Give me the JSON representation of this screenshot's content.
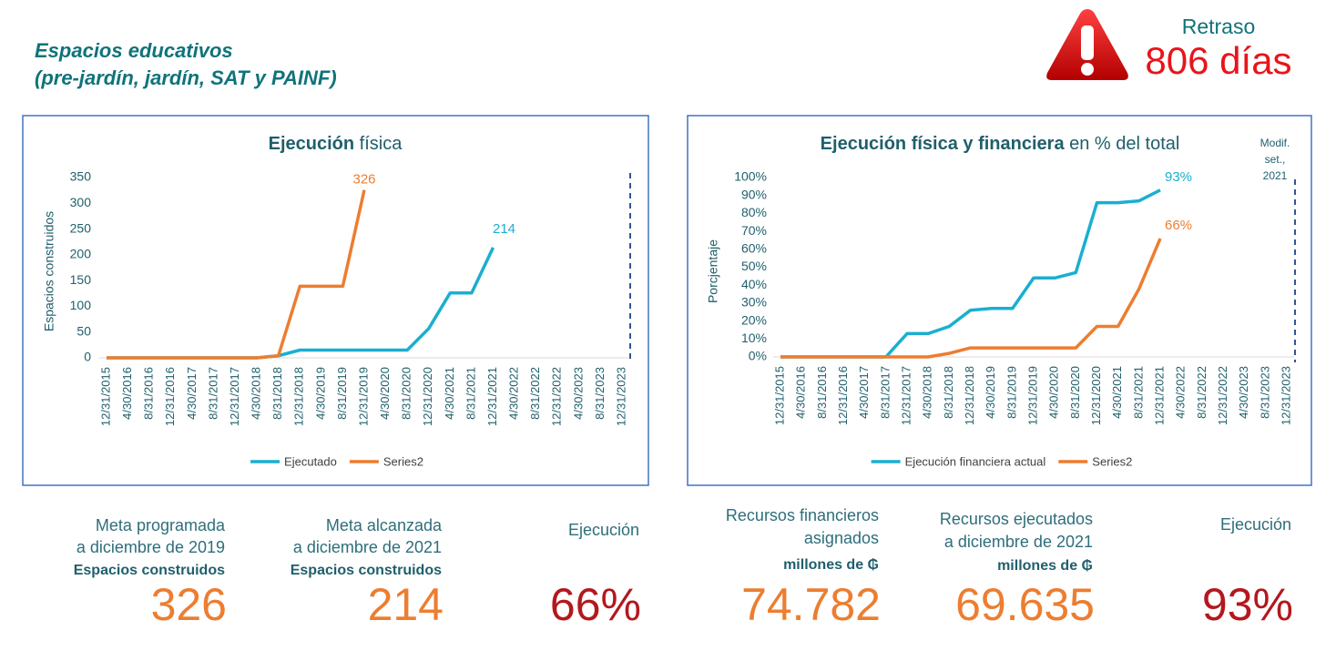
{
  "header": {
    "title": [
      "Espacios educativos",
      "(pre-jardín, jardín, SAT y PAINF)"
    ]
  },
  "delay": {
    "label": "Retraso",
    "value": "806 días"
  },
  "chart_data": [
    {
      "type": "line",
      "title": [
        "Ejecución",
        "física"
      ],
      "ylabel": "Espacios construidos",
      "categories": [
        "12/31/2015",
        "4/30/2016",
        "8/31/2016",
        "12/31/2016",
        "4/30/2017",
        "8/31/2017",
        "12/31/2017",
        "4/30/2018",
        "8/31/2018",
        "12/31/2018",
        "4/30/2019",
        "8/31/2019",
        "12/31/2019",
        "4/30/2020",
        "8/31/2020",
        "12/31/2020",
        "4/30/2021",
        "8/31/2021",
        "12/31/2021",
        "4/30/2022",
        "8/31/2022",
        "12/31/2022",
        "4/30/2023",
        "8/31/2023",
        "12/31/2023"
      ],
      "series": [
        {
          "name": "Ejecutado",
          "color": "#1aafd0",
          "values": [
            0,
            0,
            0,
            0,
            0,
            0,
            0,
            0,
            4,
            15,
            15,
            15,
            15,
            15,
            15,
            57,
            126,
            126,
            214,
            null,
            null,
            null,
            null,
            null,
            null
          ]
        },
        {
          "name": "Series2",
          "color": "#ed7d31",
          "values": [
            0,
            0,
            0,
            0,
            0,
            0,
            0,
            0,
            4,
            139,
            139,
            139,
            326,
            null,
            null,
            null,
            null,
            null,
            null,
            null,
            null,
            null,
            null,
            null,
            null
          ]
        }
      ],
      "ylim": [
        0,
        350
      ],
      "yticks": [
        0,
        50,
        100,
        150,
        200,
        250,
        300,
        350
      ],
      "legend": "bottom"
    },
    {
      "type": "line",
      "title": [
        "Ejecución física y financiera",
        "en % del total"
      ],
      "ylabel": "Porcjentaje",
      "annotation": [
        "Modif.",
        "set.,",
        "2021"
      ],
      "categories": [
        "12/31/2015",
        "4/30/2016",
        "8/31/2016",
        "12/31/2016",
        "4/30/2017",
        "8/31/2017",
        "12/31/2017",
        "4/30/2018",
        "8/31/2018",
        "12/31/2018",
        "4/30/2019",
        "8/31/2019",
        "12/31/2019",
        "4/30/2020",
        "8/31/2020",
        "12/31/2020",
        "4/30/2021",
        "8/31/2021",
        "12/31/2021",
        "4/30/2022",
        "8/31/2022",
        "12/31/2022",
        "4/30/2023",
        "8/31/2023",
        "12/31/2023"
      ],
      "series": [
        {
          "name": "Ejecución financiera actual",
          "color": "#1aafd0",
          "values": [
            0,
            0,
            0,
            0,
            0,
            0,
            13,
            13,
            17,
            26,
            27,
            27,
            44,
            44,
            47,
            86,
            86,
            87,
            93,
            null,
            null,
            null,
            null,
            null,
            null
          ],
          "value_labels": {
            "18": "93%"
          }
        },
        {
          "name": "Series2",
          "color": "#ed7d31",
          "values": [
            0,
            0,
            0,
            0,
            0,
            0,
            0,
            0,
            2,
            5,
            5,
            5,
            5,
            5,
            5,
            17,
            17,
            38,
            66,
            null,
            null,
            null,
            null,
            null,
            null
          ],
          "value_labels": {
            "18": "66%"
          }
        }
      ],
      "ylim": [
        0,
        100
      ],
      "yticks": [
        {
          "value": 0,
          "label": "0%"
        },
        {
          "value": 10,
          "label": "10%"
        },
        {
          "value": 20,
          "label": "20%"
        },
        {
          "value": 30,
          "label": "30%"
        },
        {
          "value": 40,
          "label": "40%"
        },
        {
          "value": 50,
          "label": "50%"
        },
        {
          "value": 60,
          "label": "60%"
        },
        {
          "value": 70,
          "label": "70%"
        },
        {
          "value": 80,
          "label": "80%"
        },
        {
          "value": 90,
          "label": "90%"
        },
        {
          "value": 100,
          "label": "100%"
        }
      ],
      "legend": "bottom"
    }
  ],
  "kpis": [
    {
      "lines": [
        "Meta programada",
        "a diciembre de 2019"
      ],
      "unit": "Espacios construidos",
      "value": "326",
      "color": "#ed7d31"
    },
    {
      "lines": [
        "Meta alcanzada",
        "a diciembre de 2021"
      ],
      "unit": "Espacios construidos",
      "value": "214",
      "color": "#ed7d31"
    },
    {
      "lines": [
        "Ejecución"
      ],
      "value": "66%",
      "color": "#b3181e"
    },
    {
      "lines": [
        "Recursos financieros",
        "asignados"
      ],
      "unit": "millones de ₲",
      "value": "74.782",
      "color": "#ed7d31"
    },
    {
      "lines": [
        "Recursos ejecutados",
        "a diciembre de 2021"
      ],
      "unit": "millones de ₲",
      "value": "69.635",
      "color": "#ed7d31"
    },
    {
      "lines": [
        "Ejecución"
      ],
      "value": "93%",
      "color": "#b3181e"
    }
  ]
}
